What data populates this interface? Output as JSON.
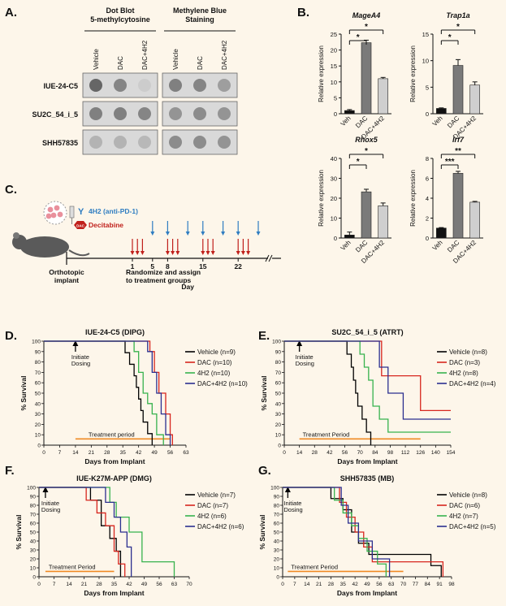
{
  "panels": {
    "A": "A.",
    "B": "B.",
    "C": "C.",
    "D": "D.",
    "E": "E.",
    "F": "F.",
    "G": "G."
  },
  "colors": {
    "vehicle": "#000000",
    "dac": "#d7261e",
    "h4h2": "#37b24d",
    "dac4h2": "#2b2f8f",
    "treatment": "#f08a24",
    "bar_veh": "#111111",
    "bar_dac": "#7a7a7a",
    "bar_dac4h2": "#cfcfcf",
    "blue_arrow": "#2f7dc1",
    "red_arrow": "#c0201b"
  },
  "dot_blot": {
    "group1_title": [
      "Dot Blot",
      "5-methylcytosine"
    ],
    "group2_title": [
      "Methylene Blue",
      "Staining"
    ],
    "lanes": [
      "Vehicle",
      "DAC",
      "DAC+4H2"
    ],
    "rows": [
      "IUE-24-C5",
      "SU2C_54_i_5",
      "SHH57835"
    ],
    "dot_gray_blot": [
      [
        0.4,
        0.52,
        0.8
      ],
      [
        0.5,
        0.5,
        0.52
      ],
      [
        0.7,
        0.7,
        0.72
      ]
    ],
    "dot_gray_stain": [
      [
        0.5,
        0.52,
        0.62
      ],
      [
        0.58,
        0.55,
        0.58
      ],
      [
        0.55,
        0.55,
        0.58
      ]
    ]
  },
  "timeline": {
    "legend_antibody": "4H2 (anti-PD-1)",
    "legend_drug": "Decitabine",
    "drug_icon_text": "DAC",
    "implant_label": [
      "Orthotopic",
      "implant"
    ],
    "randomize_label": [
      "Randomize and assign",
      "to treatment groups"
    ],
    "day_ticks": [
      "1",
      "5",
      "8",
      "15",
      "22"
    ],
    "day_label": "Day",
    "antibody_days": [
      5,
      8,
      12,
      15,
      19,
      22,
      26
    ],
    "drug_days": [
      1,
      2,
      3,
      8,
      9,
      10,
      15,
      16,
      17,
      22,
      23,
      24
    ]
  },
  "chart_data": [
    {
      "type": "bar",
      "panel": "B",
      "title": "MageA4",
      "ylabel": "Relative expression",
      "categories": [
        "Veh",
        "DAC",
        "DAC+4H2"
      ],
      "values": [
        1,
        22.3,
        11
      ],
      "errors": [
        0.3,
        0.8,
        0.4
      ],
      "ylim": [
        0,
        25
      ],
      "yticks": [
        0,
        5,
        10,
        15,
        20,
        25
      ],
      "significance": [
        {
          "from": "Veh",
          "to": "DAC",
          "label": "*"
        },
        {
          "from": "Veh",
          "to": "DAC+4H2",
          "label": "*"
        }
      ]
    },
    {
      "type": "bar",
      "panel": "B",
      "title": "Trap1a",
      "ylabel": "Relative expression",
      "categories": [
        "Veh",
        "DAC",
        "DAC+4H2"
      ],
      "values": [
        1,
        9.1,
        5.4
      ],
      "errors": [
        0.1,
        1.1,
        0.6
      ],
      "ylim": [
        0,
        15
      ],
      "yticks": [
        0,
        5,
        10,
        15
      ],
      "significance": [
        {
          "from": "Veh",
          "to": "DAC",
          "label": "*"
        },
        {
          "from": "Veh",
          "to": "DAC+4H2",
          "label": "*"
        }
      ]
    },
    {
      "type": "bar",
      "panel": "B",
      "title": "Rhox5",
      "ylabel": "Relative expression",
      "categories": [
        "Veh",
        "DAC",
        "DAC+4H2"
      ],
      "values": [
        1.5,
        23.2,
        16.2
      ],
      "errors": [
        1.5,
        1.3,
        1.4
      ],
      "ylim": [
        0,
        40
      ],
      "yticks": [
        0,
        10,
        20,
        30,
        40
      ],
      "significance": [
        {
          "from": "Veh",
          "to": "DAC",
          "label": "*"
        },
        {
          "from": "Veh",
          "to": "DAC+4H2",
          "label": "*"
        }
      ]
    },
    {
      "type": "bar",
      "panel": "B",
      "title": "Irf7",
      "ylabel": "Relative expression",
      "categories": [
        "Veh",
        "DAC",
        "DAC+4H2"
      ],
      "values": [
        1,
        6.5,
        3.6
      ],
      "errors": [
        0.05,
        0.2,
        0.08
      ],
      "ylim": [
        0,
        8
      ],
      "yticks": [
        0,
        2,
        4,
        6,
        8
      ],
      "significance": [
        {
          "from": "Veh",
          "to": "DAC",
          "label": "***"
        },
        {
          "from": "Veh",
          "to": "DAC+4H2",
          "label": "**"
        }
      ]
    },
    {
      "type": "line",
      "panel": "D",
      "title": "IUE-24-C5 (DIPG)",
      "xlabel": "Days from Implant",
      "ylabel": "% Survival",
      "xlim": [
        0,
        63
      ],
      "ylim": [
        0,
        100
      ],
      "xticks": [
        0,
        7,
        14,
        21,
        28,
        35,
        42,
        49,
        56,
        63
      ],
      "yticks": [
        0,
        10,
        20,
        30,
        40,
        50,
        60,
        70,
        80,
        90,
        100
      ],
      "annotation": [
        "Initiate",
        "Dosing"
      ],
      "annotation_x": 14,
      "treatment_period": {
        "label": "Treatment period",
        "x": [
          14,
          56
        ],
        "y": 6
      },
      "series": [
        {
          "name": "Vehicle (n=9)",
          "color": "#000000",
          "x": [
            0,
            36,
            38,
            40,
            41,
            42,
            43,
            44,
            46,
            48
          ],
          "y": [
            100,
            88.9,
            77.8,
            66.7,
            55.6,
            44.4,
            33.3,
            22.2,
            11.1,
            0
          ]
        },
        {
          "name": "DAC (n=10)",
          "color": "#d7261e",
          "x": [
            0,
            47,
            49,
            51,
            54,
            56,
            57
          ],
          "y": [
            100,
            90,
            70,
            50,
            30,
            10,
            0
          ]
        },
        {
          "name": "4H2 (n=10)",
          "color": "#37b24d",
          "x": [
            0,
            40,
            42,
            44,
            46,
            48,
            50,
            53
          ],
          "y": [
            100,
            90,
            70,
            50,
            40,
            30,
            10,
            0
          ]
        },
        {
          "name": "DAC+4H2 (n=10)",
          "color": "#2b2f8f",
          "x": [
            0,
            46,
            48,
            50,
            52,
            54,
            56
          ],
          "y": [
            100,
            90,
            70,
            50,
            30,
            10,
            0
          ]
        }
      ]
    },
    {
      "type": "line",
      "panel": "E",
      "title": "SU2C_54_i_5 (ATRT)",
      "xlabel": "Days from Implant",
      "ylabel": "% Survival",
      "xlim": [
        0,
        154
      ],
      "ylim": [
        0,
        100
      ],
      "xticks": [
        0,
        14,
        28,
        42,
        56,
        70,
        84,
        98,
        112,
        126,
        140,
        154
      ],
      "yticks": [
        0,
        10,
        20,
        30,
        40,
        50,
        60,
        70,
        80,
        90,
        100
      ],
      "annotation": [
        "Initiate",
        "Dosing"
      ],
      "annotation_x": 14,
      "treatment_period": {
        "label": "Treatment Period",
        "x": [
          14,
          126
        ],
        "y": 6
      },
      "series": [
        {
          "name": "Vehicle (n=8)",
          "color": "#000000",
          "x": [
            0,
            58,
            62,
            64,
            66,
            68,
            72,
            76,
            80
          ],
          "y": [
            100,
            87.5,
            75,
            62.5,
            50,
            37.5,
            25,
            12.5,
            0
          ]
        },
        {
          "name": "DAC (n=3)",
          "color": "#d7261e",
          "x": [
            0,
            90,
            126,
            154
          ],
          "y": [
            100,
            66.7,
            33.3,
            33.3
          ]
        },
        {
          "name": "4H2 (n=8)",
          "color": "#37b24d",
          "x": [
            0,
            70,
            74,
            78,
            82,
            88,
            96,
            154
          ],
          "y": [
            100,
            87.5,
            75,
            62.5,
            37.5,
            25,
            12.5,
            12.5
          ]
        },
        {
          "name": "DAC+4H2 (n=4)",
          "color": "#2b2f8f",
          "x": [
            0,
            88,
            96,
            110,
            154
          ],
          "y": [
            100,
            75,
            50,
            25,
            25
          ]
        }
      ]
    },
    {
      "type": "line",
      "panel": "F",
      "title": "IUE-K27M-APP (DMG)",
      "xlabel": "Days from Implant",
      "ylabel": "% Survival",
      "xlim": [
        0,
        70
      ],
      "ylim": [
        0,
        100
      ],
      "xticks": [
        0,
        7,
        14,
        21,
        28,
        35,
        42,
        49,
        56,
        63,
        70
      ],
      "yticks": [
        0,
        10,
        20,
        30,
        40,
        50,
        60,
        70,
        80,
        90,
        100
      ],
      "annotation": [
        "Initiate",
        "Dosing"
      ],
      "annotation_x": 3,
      "treatment_period": {
        "label": "Treatment Period",
        "x": [
          3,
          35
        ],
        "y": 6
      },
      "series": [
        {
          "name": "Vehicle (n=7)",
          "color": "#000000",
          "x": [
            0,
            24,
            29,
            33,
            36,
            38
          ],
          "y": [
            100,
            85.7,
            57.1,
            42.9,
            28.6,
            0
          ]
        },
        {
          "name": "DAC (n=7)",
          "color": "#d7261e",
          "x": [
            0,
            22,
            27,
            31,
            35,
            37,
            40
          ],
          "y": [
            100,
            85.7,
            71.4,
            57.1,
            28.6,
            14.3,
            0
          ]
        },
        {
          "name": "4H2 (n=6)",
          "color": "#37b24d",
          "x": [
            0,
            33,
            36,
            42,
            48,
            63
          ],
          "y": [
            100,
            83.3,
            66.7,
            50,
            16.7,
            0
          ]
        },
        {
          "name": "DAC+4H2 (n=6)",
          "color": "#2b2f8f",
          "x": [
            0,
            31,
            35,
            38,
            41,
            43
          ],
          "y": [
            100,
            83.3,
            66.7,
            50,
            33.3,
            0
          ]
        }
      ]
    },
    {
      "type": "line",
      "panel": "G",
      "title": "SHH57835 (MB)",
      "xlabel": "Days from Implant",
      "ylabel": "% Survival",
      "xlim": [
        0,
        98
      ],
      "ylim": [
        0,
        100
      ],
      "xticks": [
        0,
        7,
        14,
        21,
        28,
        35,
        42,
        49,
        56,
        63,
        70,
        77,
        84,
        91,
        98
      ],
      "yticks": [
        0,
        10,
        20,
        30,
        40,
        50,
        60,
        70,
        80,
        90,
        100
      ],
      "annotation": [
        "Initiate",
        "Dosing"
      ],
      "annotation_x": 3,
      "treatment_period": {
        "label": "Treatment Period",
        "x": [
          3,
          70
        ],
        "y": 6
      },
      "series": [
        {
          "name": "Vehicle (n=8)",
          "color": "#000000",
          "x": [
            0,
            28,
            35,
            40,
            44,
            50,
            60,
            86,
            92
          ],
          "y": [
            100,
            87.5,
            75,
            50,
            37.5,
            25,
            25,
            12.5,
            0
          ]
        },
        {
          "name": "DAC (n=6)",
          "color": "#d7261e",
          "x": [
            0,
            33,
            37,
            42,
            47,
            52,
            93
          ],
          "y": [
            100,
            83.3,
            66.7,
            50,
            33.3,
            16.7,
            0
          ]
        },
        {
          "name": "4H2 (n=7)",
          "color": "#37b24d",
          "x": [
            0,
            30,
            35,
            40,
            44,
            49,
            55,
            60
          ],
          "y": [
            100,
            85.7,
            71.4,
            57.1,
            42.9,
            28.6,
            14.3,
            0
          ]
        },
        {
          "name": "DAC+4H2 (n=5)",
          "color": "#2b2f8f",
          "x": [
            0,
            34,
            38,
            44,
            52,
            62
          ],
          "y": [
            100,
            80,
            60,
            40,
            20,
            0
          ]
        }
      ]
    }
  ]
}
